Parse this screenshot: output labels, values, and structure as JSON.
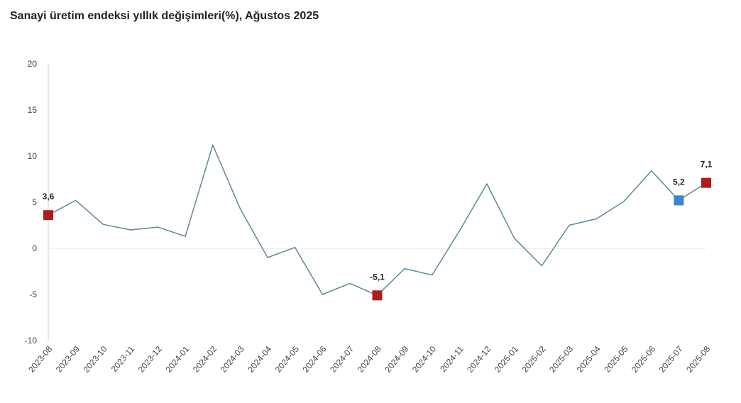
{
  "chart_data": {
    "type": "line",
    "title": "Sanayi üretim endeksi yıllık değişimleri(%), Ağustos 2025",
    "xlabel": "",
    "ylabel": "",
    "ylim": [
      -10,
      20
    ],
    "yticks": [
      "20",
      "15",
      "10",
      "5",
      "0",
      "-5",
      "-10"
    ],
    "grid": false,
    "legend": "none",
    "categories": [
      "2023-08",
      "2023-09",
      "2023-10",
      "2023-11",
      "2023-12",
      "2024-01",
      "2024-02",
      "2024-03",
      "2024-04",
      "2024-05",
      "2024-06",
      "2024-07",
      "2024-08",
      "2024-09",
      "2024-10",
      "2024-11",
      "2024-12",
      "2025-01",
      "2025-02",
      "2025-03",
      "2025-04",
      "2025-05",
      "2025-06",
      "2025-07",
      "2025-08"
    ],
    "series": [
      {
        "values": [
          3.6,
          5.2,
          2.6,
          2.0,
          2.3,
          1.3,
          11.2,
          4.3,
          -1.0,
          0.1,
          -5.0,
          -3.8,
          -5.1,
          -2.2,
          -2.9,
          1.9,
          7.0,
          1.1,
          -1.9,
          2.5,
          3.2,
          5.1,
          8.4,
          5.2,
          7.1
        ],
        "color": "#5b8a94"
      }
    ],
    "highlights": [
      {
        "index": 0,
        "label": "3,6",
        "color": "#b01c1c"
      },
      {
        "index": 12,
        "label": "-5,1",
        "color": "#b01c1c"
      },
      {
        "index": 23,
        "label": "5,2",
        "color": "#3a86c8"
      },
      {
        "index": 24,
        "label": "7,1",
        "color": "#b01c1c"
      }
    ],
    "axis_color": "#d0d0d0",
    "zero_line_color": "#e3e3e3"
  }
}
